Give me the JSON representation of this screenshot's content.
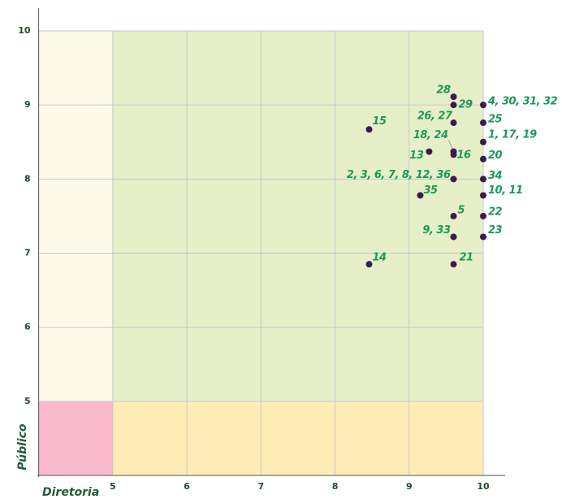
{
  "chart_data": {
    "type": "scatter",
    "xlabel": "Diretoria",
    "ylabel": "Público",
    "xlim": [
      4,
      10
    ],
    "ylim": [
      4,
      10
    ],
    "xticks": [
      5,
      6,
      7,
      8,
      9,
      10
    ],
    "yticks": [
      5,
      6,
      7,
      8,
      9,
      10
    ],
    "grid": true,
    "split": [
      5,
      5
    ],
    "quadrant_colors": {
      "top_left": "#fef8e8",
      "top_right": "#e6efc8",
      "bottom_left": "#f9b9cc",
      "bottom_right": "#feecb6"
    },
    "color": "#3b1a4f",
    "label_color": "#1a9a5a",
    "x": [
      9.6,
      9.6,
      10,
      9.6,
      10,
      8.46,
      10,
      9.6,
      9.27,
      9.6,
      10,
      9.6,
      10,
      10,
      9.15,
      9.6,
      10,
      9.6,
      10,
      8.46,
      9.6
    ],
    "values": [
      9.11,
      9.0,
      9.0,
      8.76,
      8.76,
      8.67,
      8.5,
      8.37,
      8.37,
      8.33,
      8.27,
      8.0,
      8.0,
      7.78,
      7.78,
      7.5,
      7.5,
      7.22,
      7.22,
      6.85,
      6.85
    ],
    "point_labels": [
      "28",
      "29",
      "4, 30, 31, 32",
      "26, 27",
      "25",
      "15",
      "1, 17, 19",
      "18, 24",
      "13",
      "16",
      "20",
      "2, 3, 6, 7, 8, 12, 36",
      "34",
      "10, 11",
      "35",
      "5",
      "22",
      "9, 33",
      "23",
      "14",
      "21"
    ]
  }
}
